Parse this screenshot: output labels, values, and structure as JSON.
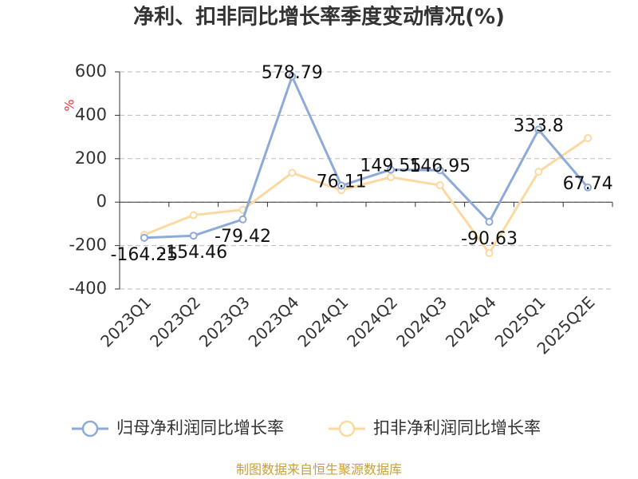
{
  "chart_data": {
    "type": "line",
    "title": "净利、扣非同比增长率季度变动情况(%)",
    "y_label": "%",
    "categories": [
      "2023Q1",
      "2023Q2",
      "2023Q3",
      "2023Q4",
      "2024Q1",
      "2024Q2",
      "2024Q3",
      "2024Q4",
      "2025Q1",
      "2025Q2E"
    ],
    "series": [
      {
        "name": "归母净利润同比增长率",
        "color": "#8eaad8",
        "values": [
          -164.25,
          -154.46,
          -79.42,
          578.79,
          76.11,
          149.55,
          146.95,
          -90.63,
          333.8,
          67.74
        ],
        "show_labels": true
      },
      {
        "name": "扣非净利润同比增长率",
        "color": "#fcd9a0",
        "values": [
          -150,
          -60,
          -35,
          135,
          55,
          115,
          78,
          -235,
          140,
          295
        ],
        "show_labels": false
      }
    ],
    "ylim": [
      -400,
      600
    ],
    "yticks": [
      -400,
      -200,
      0,
      200,
      400,
      600
    ],
    "grid": true,
    "source": "制图数据来自恒生聚源数据库"
  }
}
